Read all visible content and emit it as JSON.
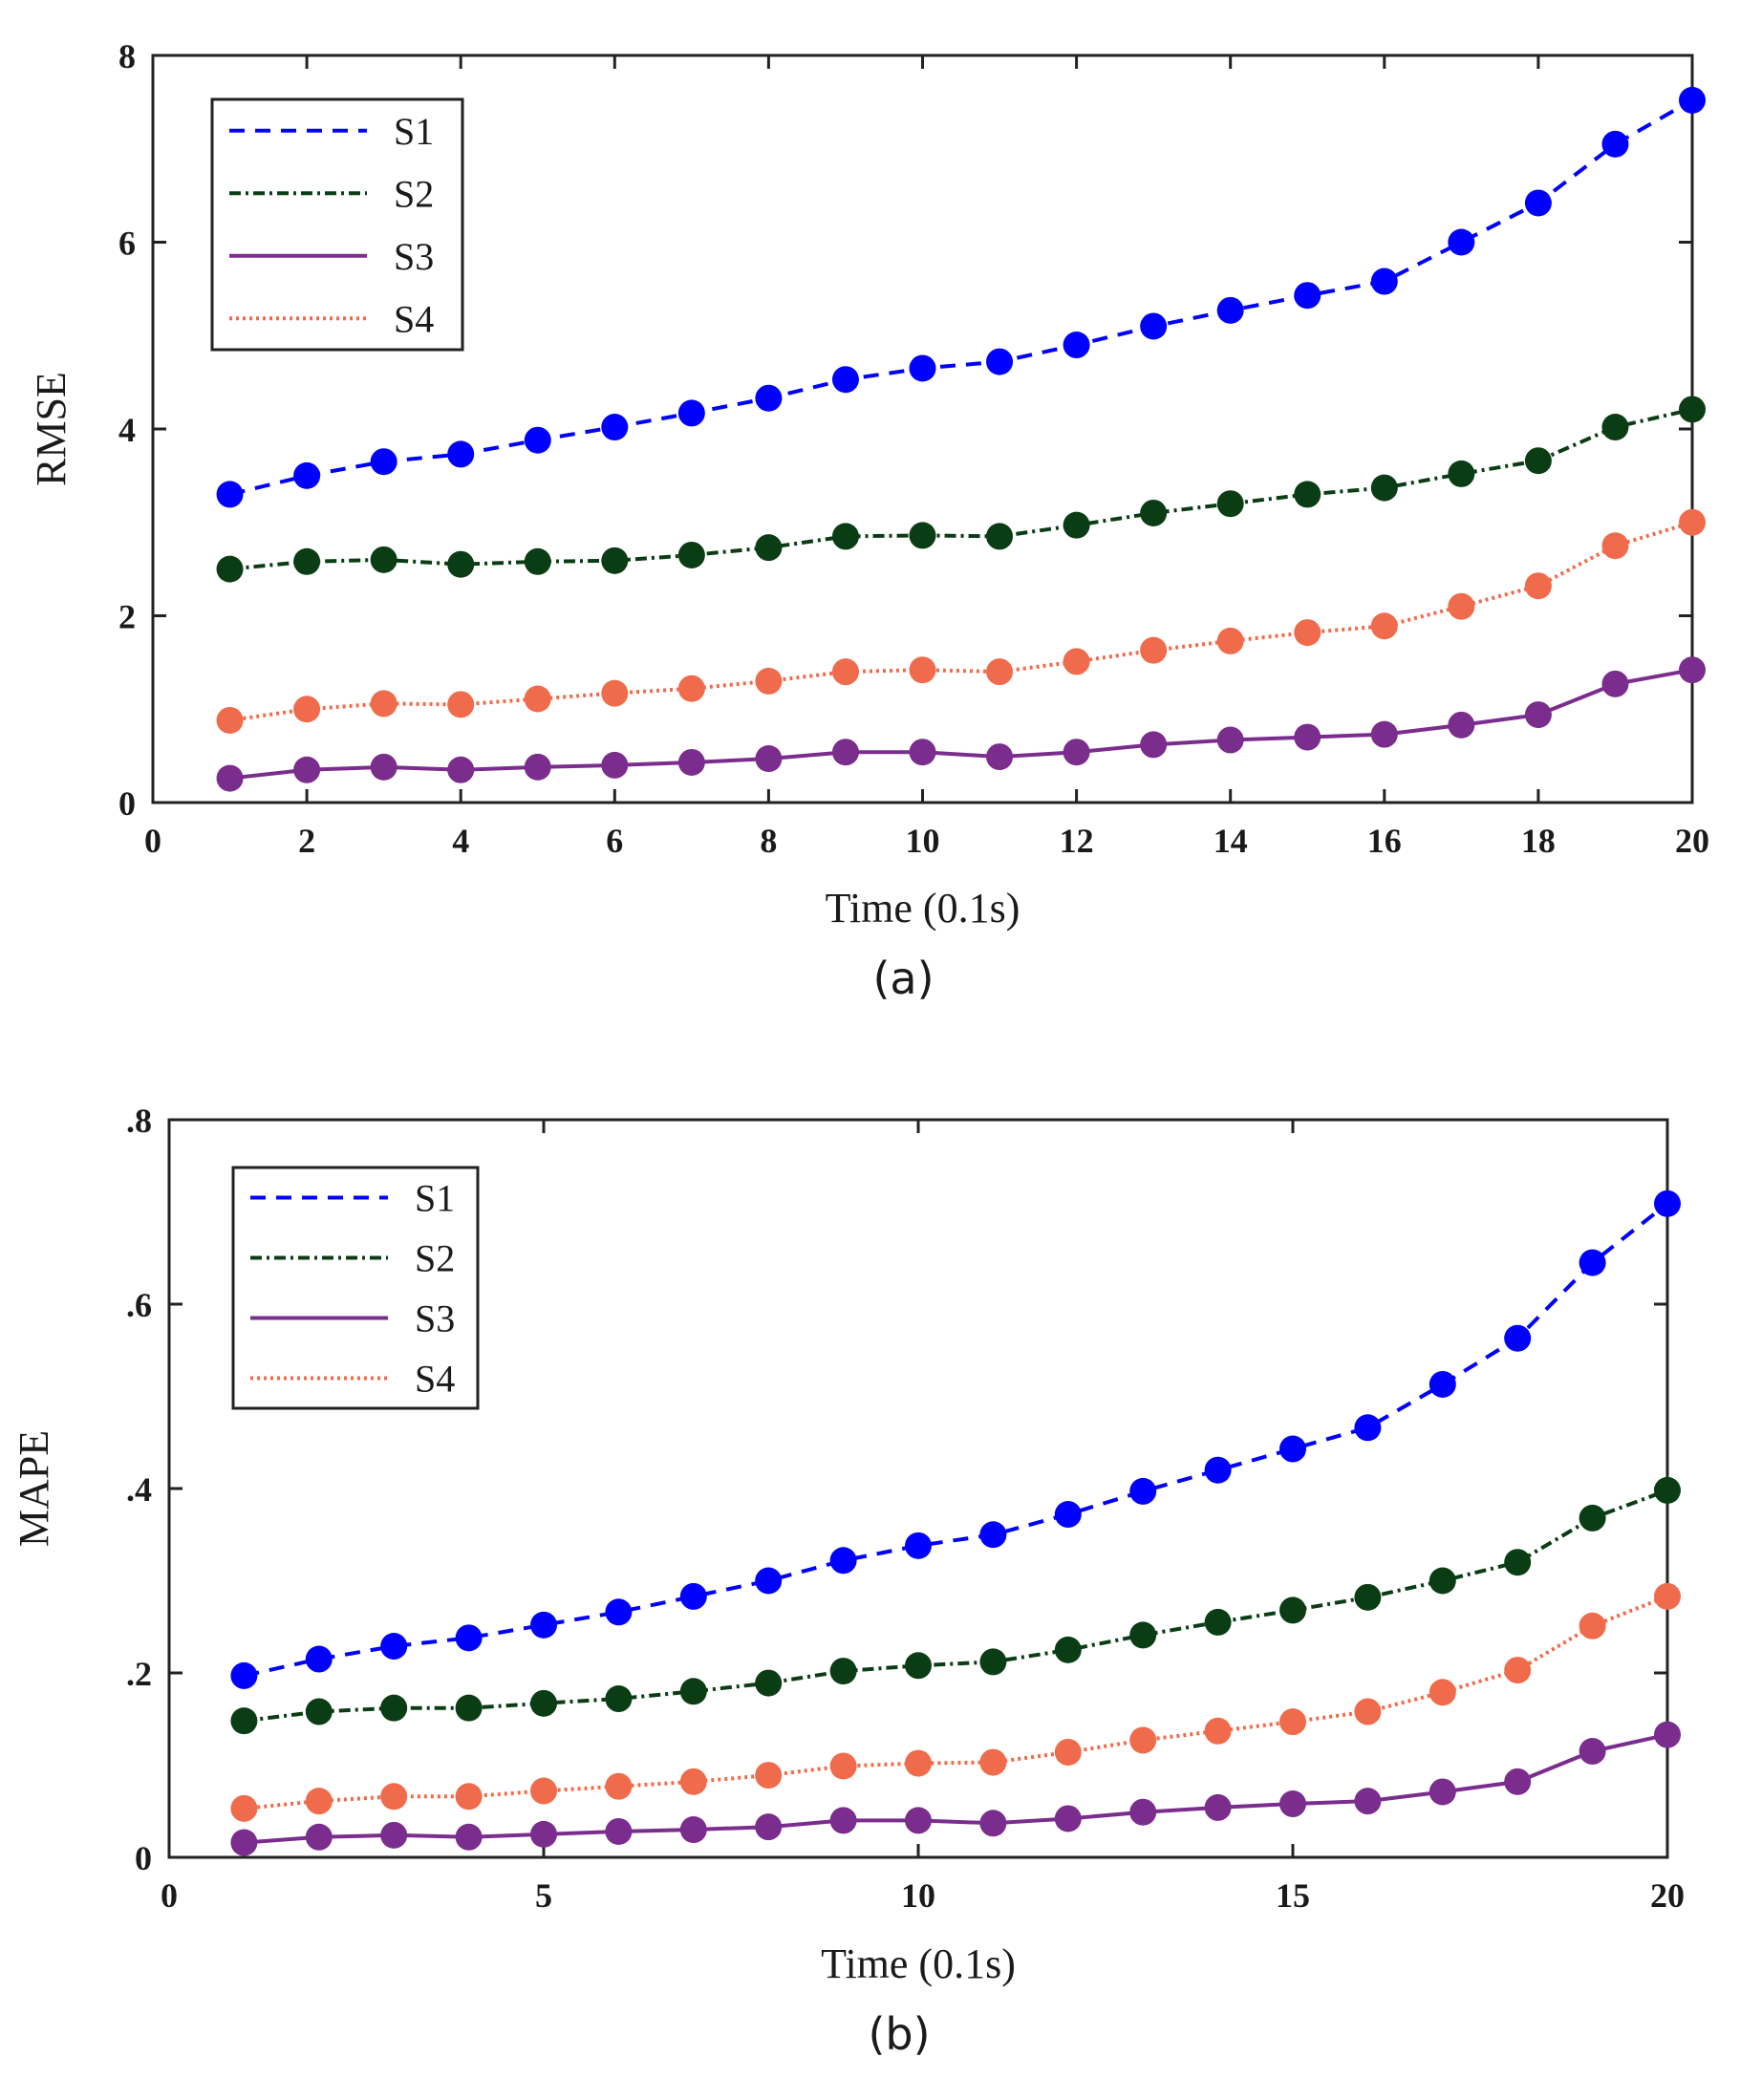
{
  "chart_data": [
    {
      "type": "line",
      "panel_label": "(a)",
      "xlabel": "Time (0.1s)",
      "ylabel": "RMSE",
      "xlim": [
        0,
        20
      ],
      "ylim": [
        0,
        8
      ],
      "xticks": [
        0,
        2,
        4,
        6,
        8,
        10,
        12,
        14,
        16,
        18,
        20
      ],
      "yticks": [
        0,
        2,
        4,
        6,
        8
      ],
      "legend_position": "top-left",
      "grid": false,
      "x": [
        1,
        2,
        3,
        4,
        5,
        6,
        7,
        8,
        9,
        10,
        11,
        12,
        13,
        14,
        15,
        16,
        17,
        18,
        19,
        20
      ],
      "series": [
        {
          "name": "S1",
          "color": "#0000ff",
          "line_style": "dashed",
          "values": [
            3.3,
            3.5,
            3.65,
            3.73,
            3.88,
            4.02,
            4.17,
            4.33,
            4.53,
            4.65,
            4.72,
            4.9,
            5.1,
            5.27,
            5.43,
            5.58,
            6.0,
            6.42,
            7.05,
            7.52
          ]
        },
        {
          "name": "S2",
          "color": "#0b3d14",
          "line_style": "dash-dot",
          "values": [
            2.5,
            2.58,
            2.6,
            2.55,
            2.58,
            2.59,
            2.65,
            2.73,
            2.85,
            2.86,
            2.85,
            2.97,
            3.1,
            3.2,
            3.3,
            3.37,
            3.52,
            3.66,
            4.02,
            4.21
          ]
        },
        {
          "name": "S3",
          "color": "#7b2d8e",
          "line_style": "solid",
          "values": [
            0.26,
            0.35,
            0.38,
            0.35,
            0.38,
            0.4,
            0.43,
            0.47,
            0.54,
            0.54,
            0.49,
            0.54,
            0.62,
            0.67,
            0.7,
            0.73,
            0.83,
            0.94,
            1.27,
            1.42
          ]
        },
        {
          "name": "S4",
          "color": "#f06b4b",
          "line_style": "dotted",
          "values": [
            0.88,
            1.0,
            1.06,
            1.05,
            1.11,
            1.17,
            1.22,
            1.3,
            1.4,
            1.42,
            1.4,
            1.51,
            1.63,
            1.73,
            1.82,
            1.89,
            2.1,
            2.32,
            2.75,
            3.0
          ]
        }
      ]
    },
    {
      "type": "line",
      "panel_label": "(b)",
      "xlabel": "Time (0.1s)",
      "ylabel": "MAPE",
      "xlim": [
        0,
        20
      ],
      "ylim": [
        0,
        0.8
      ],
      "xticks": [
        0,
        5,
        10,
        15,
        20
      ],
      "yticks": [
        0,
        0.2,
        0.4,
        0.6,
        0.8
      ],
      "legend_position": "top-left",
      "grid": false,
      "x": [
        1,
        2,
        3,
        4,
        5,
        6,
        7,
        8,
        9,
        10,
        11,
        12,
        13,
        14,
        15,
        16,
        17,
        18,
        19,
        20
      ],
      "series": [
        {
          "name": "S1",
          "color": "#0000ff",
          "line_style": "dashed",
          "values": [
            0.197,
            0.215,
            0.229,
            0.238,
            0.252,
            0.266,
            0.283,
            0.3,
            0.322,
            0.338,
            0.35,
            0.372,
            0.397,
            0.42,
            0.443,
            0.466,
            0.513,
            0.563,
            0.645,
            0.709
          ]
        },
        {
          "name": "S2",
          "color": "#0b3d14",
          "line_style": "dash-dot",
          "values": [
            0.148,
            0.158,
            0.162,
            0.162,
            0.167,
            0.172,
            0.18,
            0.189,
            0.202,
            0.208,
            0.212,
            0.225,
            0.241,
            0.255,
            0.268,
            0.282,
            0.3,
            0.32,
            0.368,
            0.398
          ]
        },
        {
          "name": "S3",
          "color": "#7b2d8e",
          "line_style": "solid",
          "values": [
            0.016,
            0.022,
            0.024,
            0.022,
            0.025,
            0.028,
            0.03,
            0.033,
            0.04,
            0.04,
            0.037,
            0.042,
            0.049,
            0.054,
            0.058,
            0.061,
            0.071,
            0.082,
            0.115,
            0.133
          ]
        },
        {
          "name": "S4",
          "color": "#f06b4b",
          "line_style": "dotted",
          "values": [
            0.053,
            0.061,
            0.066,
            0.066,
            0.072,
            0.077,
            0.082,
            0.089,
            0.099,
            0.102,
            0.103,
            0.114,
            0.127,
            0.137,
            0.147,
            0.158,
            0.179,
            0.203,
            0.251,
            0.283
          ]
        }
      ]
    }
  ]
}
